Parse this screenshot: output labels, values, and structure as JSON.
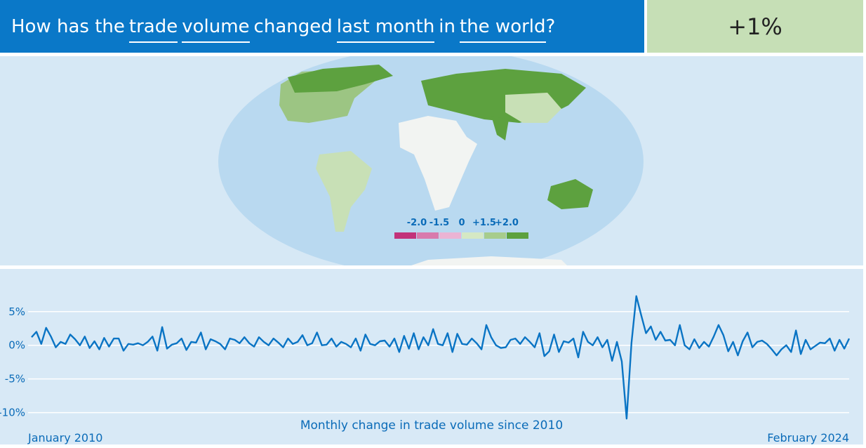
{
  "header": {
    "question_parts": [
      "How has the",
      "trade",
      "volume",
      "changed",
      "last month",
      "in",
      "the world",
      "?"
    ],
    "headline_value": "+1%"
  },
  "map": {
    "legend": {
      "labels": [
        "-2.0",
        "-1.5",
        "0",
        "+1.5",
        "+2.0"
      ],
      "colors": [
        "#c2327a",
        "#d87aad",
        "#ebb4d4",
        "#d5e8c4",
        "#a7cc8c",
        "#5da13f"
      ]
    }
  },
  "chart_data": {
    "type": "line",
    "xlabel": "Monthly change in trade volume since 2010",
    "categories": [
      "January 2010",
      null,
      null,
      null,
      null,
      null,
      null,
      null,
      null,
      null,
      null,
      null,
      null,
      null,
      null,
      null,
      null,
      null,
      null,
      null,
      null,
      null,
      null,
      null,
      null,
      null,
      null,
      null,
      null,
      null,
      null,
      null,
      null,
      null,
      null,
      null,
      null,
      null,
      null,
      null,
      null,
      null,
      null,
      null,
      null,
      null,
      null,
      null,
      null,
      null,
      null,
      null,
      null,
      null,
      null,
      null,
      null,
      null,
      null,
      null,
      null,
      null,
      null,
      null,
      null,
      null,
      null,
      null,
      null,
      null,
      null,
      null,
      null,
      null,
      null,
      null,
      null,
      null,
      null,
      null,
      null,
      null,
      null,
      null,
      null,
      null,
      null,
      null,
      null,
      null,
      null,
      null,
      null,
      null,
      null,
      null,
      null,
      null,
      null,
      null,
      null,
      null,
      null,
      null,
      null,
      null,
      null,
      null,
      null,
      null,
      null,
      null,
      null,
      null,
      null,
      null,
      null,
      null,
      null,
      null,
      null,
      null,
      null,
      null,
      null,
      null,
      null,
      null,
      null,
      null,
      null,
      null,
      null,
      null,
      null,
      null,
      null,
      null,
      null,
      null,
      null,
      null,
      null,
      null,
      null,
      null,
      null,
      null,
      null,
      null,
      null,
      null,
      null,
      null,
      null,
      null,
      null,
      null,
      null,
      null,
      null,
      null,
      null,
      null,
      null,
      null,
      null,
      null,
      null,
      "February 2024"
    ],
    "values": [
      1.2,
      2.0,
      0.2,
      2.6,
      1.3,
      -0.3,
      0.5,
      0.2,
      1.6,
      0.9,
      0.0,
      1.3,
      -0.4,
      0.6,
      -0.6,
      1.1,
      -0.2,
      1.0,
      1.0,
      -0.8,
      0.2,
      0.1,
      0.3,
      0.0,
      0.5,
      1.3,
      -0.8,
      2.7,
      -0.5,
      0.1,
      0.3,
      1.0,
      -0.7,
      0.5,
      0.4,
      1.9,
      -0.6,
      0.9,
      0.6,
      0.2,
      -0.6,
      1.0,
      0.8,
      0.3,
      1.2,
      0.3,
      -0.2,
      1.2,
      0.5,
      0.0,
      1.0,
      0.4,
      -0.3,
      1.0,
      0.2,
      0.5,
      1.5,
      0.0,
      0.3,
      1.9,
      0.0,
      0.1,
      1.0,
      -0.2,
      0.5,
      0.2,
      -0.3,
      1.0,
      -0.8,
      1.6,
      0.2,
      0.0,
      0.6,
      0.7,
      -0.2,
      1.0,
      -1.0,
      1.4,
      -0.5,
      1.8,
      -0.6,
      1.2,
      0.0,
      2.4,
      0.2,
      0.0,
      1.8,
      -1.0,
      1.7,
      0.2,
      0.1,
      1.0,
      0.3,
      -0.6,
      3.0,
      1.2,
      0.0,
      -0.4,
      -0.3,
      0.8,
      1.0,
      0.2,
      1.2,
      0.5,
      -0.3,
      1.8,
      -1.6,
      -0.9,
      1.6,
      -1.0,
      0.6,
      0.4,
      1.0,
      -1.8,
      2.0,
      0.5,
      0.0,
      1.2,
      -0.3,
      0.8,
      -2.3,
      0.5,
      -2.4,
      -10.9,
      0.3,
      7.3,
      4.5,
      1.8,
      2.8,
      0.8,
      2.0,
      0.7,
      0.8,
      0.0,
      3.0,
      0.0,
      -0.6,
      0.9,
      -0.4,
      0.5,
      -0.2,
      1.3,
      3.0,
      1.5,
      -0.9,
      0.5,
      -1.5,
      0.6,
      1.9,
      -0.3,
      0.5,
      0.7,
      0.2,
      -0.6,
      -1.5,
      -0.6,
      0.0,
      -1.0,
      2.2,
      -1.3,
      0.8,
      -0.6,
      -0.1,
      0.4,
      0.3,
      1.0,
      -0.8,
      0.8,
      -0.5,
      1.0
    ],
    "color": "#0a74c4",
    "ylim": [
      -11.5,
      8
    ],
    "yticks": [
      {
        "value": 5,
        "label": "5%"
      },
      {
        "value": 0,
        "label": "0%"
      },
      {
        "value": -5,
        "label": "-5%"
      },
      {
        "value": -10,
        "label": "-10%"
      }
    ],
    "grid": true
  }
}
